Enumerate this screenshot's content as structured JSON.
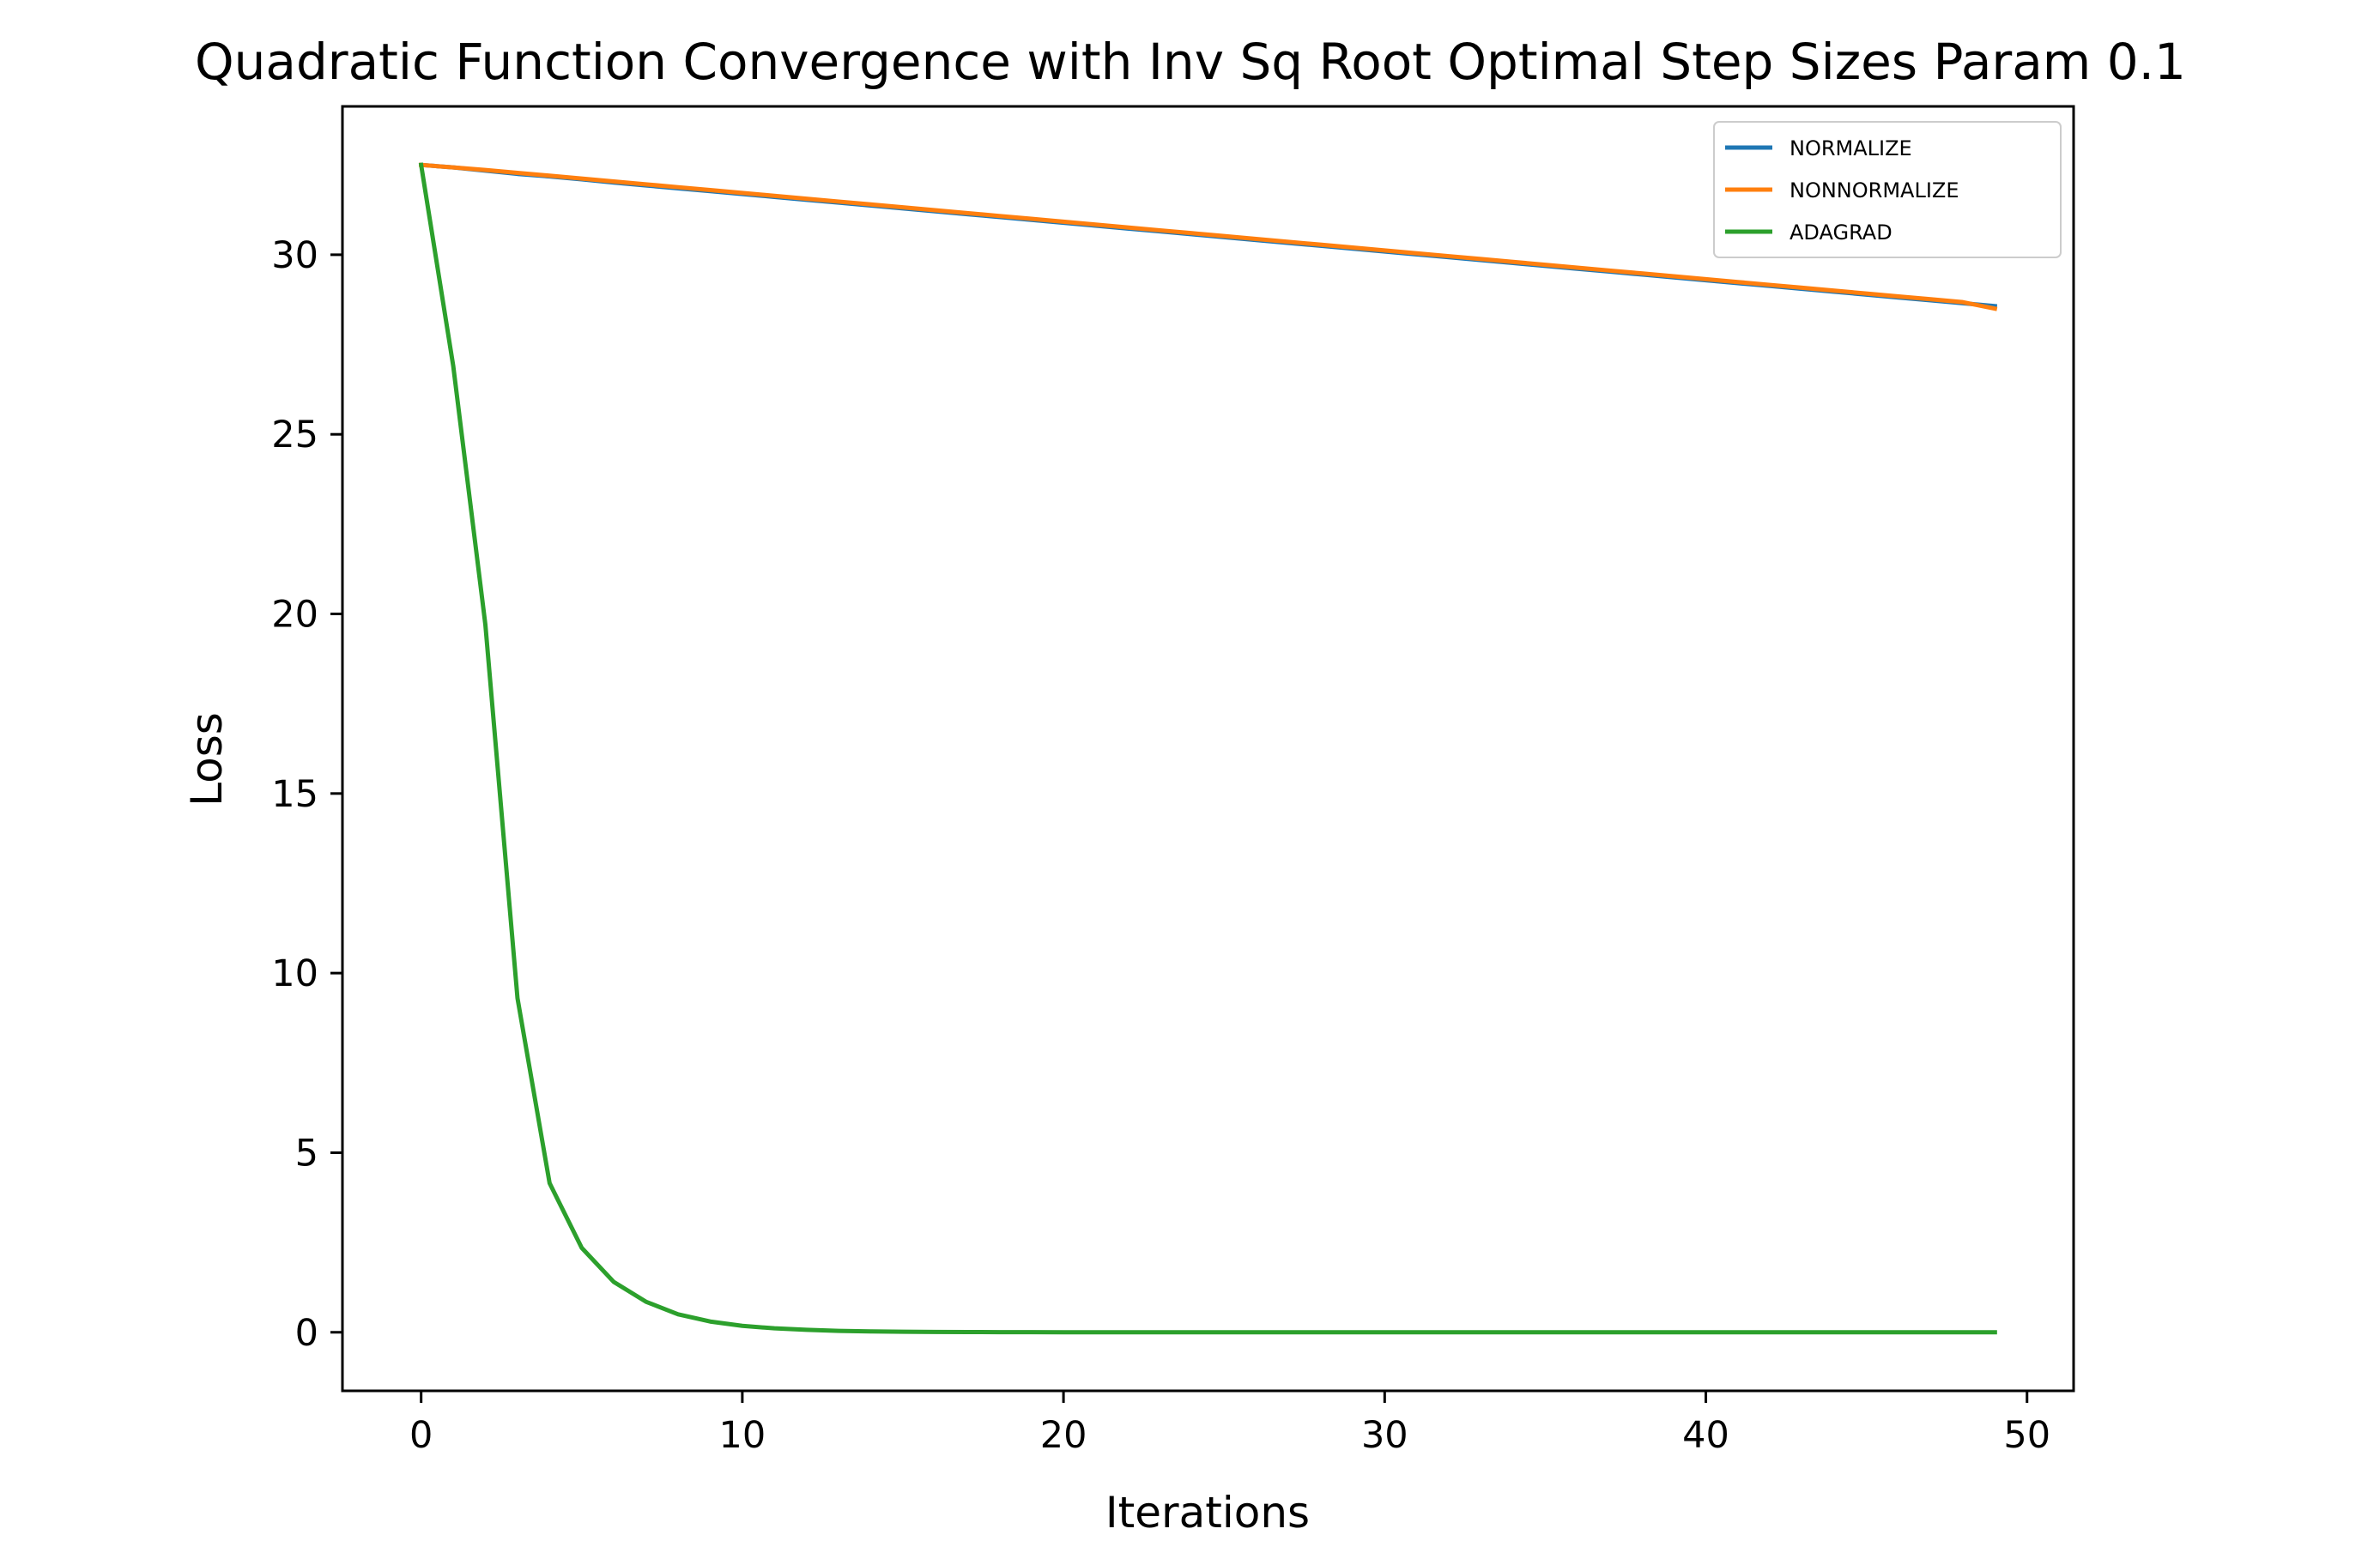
{
  "chart_data": {
    "type": "line",
    "title": "Quadratic Function Convergence with Inv Sq Root Optimal Step Sizes Param 0.1",
    "xlabel": "Iterations",
    "ylabel": "Loss",
    "xlim": [
      -2.45,
      51.45
    ],
    "ylim": [
      -1.63,
      34.13
    ],
    "xticks": [
      0,
      10,
      20,
      30,
      40,
      50
    ],
    "yticks": [
      0,
      5,
      10,
      15,
      20,
      25,
      30
    ],
    "xtick_labels": [
      "0",
      "10",
      "20",
      "30",
      "40",
      "50"
    ],
    "ytick_labels": [
      "0",
      "5",
      "10",
      "15",
      "20",
      "25",
      "30"
    ],
    "legend_position": "top-right",
    "grid": false,
    "x": [
      0,
      1,
      2,
      3,
      4,
      5,
      6,
      7,
      8,
      9,
      10,
      11,
      12,
      13,
      14,
      15,
      16,
      17,
      18,
      19,
      20,
      21,
      22,
      23,
      24,
      25,
      26,
      27,
      28,
      29,
      30,
      31,
      32,
      33,
      34,
      35,
      36,
      37,
      38,
      39,
      40,
      41,
      42,
      43,
      44,
      45,
      46,
      47,
      48,
      49
    ],
    "series": [
      {
        "name": "NORMALIZE",
        "color": "#1f77b4",
        "values": [
          32.5,
          32.43,
          32.34,
          32.25,
          32.18,
          32.1,
          32.01,
          31.93,
          31.85,
          31.77,
          31.69,
          31.61,
          31.53,
          31.45,
          31.37,
          31.29,
          31.21,
          31.13,
          31.05,
          30.97,
          30.89,
          30.81,
          30.73,
          30.65,
          30.57,
          30.49,
          30.41,
          30.33,
          30.25,
          30.17,
          30.09,
          30.01,
          29.93,
          29.85,
          29.77,
          29.69,
          29.61,
          29.53,
          29.45,
          29.37,
          29.29,
          29.21,
          29.13,
          29.05,
          28.97,
          28.89,
          28.81,
          28.73,
          28.65,
          28.57
        ]
      },
      {
        "name": "NONNORMALIZE",
        "color": "#ff7f0e",
        "values": [
          32.5,
          32.43,
          32.36,
          32.28,
          32.2,
          32.12,
          32.04,
          31.96,
          31.88,
          31.8,
          31.72,
          31.64,
          31.56,
          31.48,
          31.4,
          31.32,
          31.24,
          31.16,
          31.08,
          31.0,
          30.92,
          30.84,
          30.76,
          30.68,
          30.6,
          30.52,
          30.44,
          30.36,
          30.28,
          30.2,
          30.12,
          30.04,
          29.96,
          29.88,
          29.8,
          29.72,
          29.64,
          29.56,
          29.48,
          29.4,
          29.32,
          29.24,
          29.16,
          29.08,
          29.0,
          28.92,
          28.84,
          28.76,
          28.68,
          28.5
        ]
      },
      {
        "name": "ADAGRAD",
        "color": "#2ca02c",
        "values": [
          32.5,
          26.9,
          19.7,
          9.3,
          4.15,
          2.35,
          1.4,
          0.85,
          0.5,
          0.3,
          0.18,
          0.11,
          0.07,
          0.04,
          0.025,
          0.015,
          0.01,
          0.006,
          0.004,
          0.002,
          0,
          0,
          0,
          0,
          0,
          0,
          0,
          0,
          0,
          0,
          0,
          0,
          0,
          0,
          0,
          0,
          0,
          0,
          0,
          0,
          0,
          0,
          0,
          0,
          0,
          0,
          0,
          0,
          0,
          0
        ]
      }
    ]
  }
}
